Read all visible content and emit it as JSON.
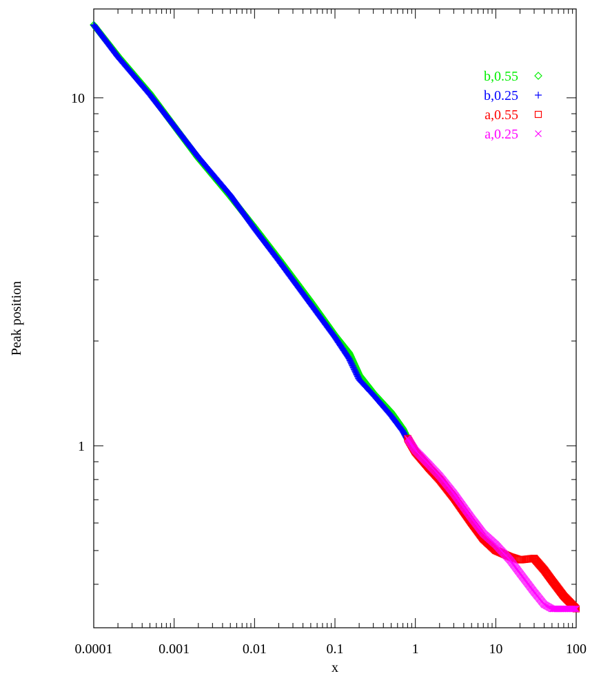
{
  "chart_data": {
    "type": "scatter",
    "title": "",
    "xlabel": "x",
    "ylabel": "Peak position",
    "xscale": "log",
    "yscale": "log",
    "xlim": [
      0.0001,
      100
    ],
    "ylim": [
      0.3,
      18
    ],
    "grid": false,
    "legend_position": "top-right",
    "x_ticks": [
      {
        "value": 0.0001,
        "label": "0.0001"
      },
      {
        "value": 0.001,
        "label": "0.001"
      },
      {
        "value": 0.01,
        "label": "0.01"
      },
      {
        "value": 0.1,
        "label": "0.1"
      },
      {
        "value": 1,
        "label": "1"
      },
      {
        "value": 10,
        "label": "10"
      },
      {
        "value": 100,
        "label": "100"
      }
    ],
    "y_ticks": [
      {
        "value": 1,
        "label": "1"
      },
      {
        "value": 10,
        "label": "10"
      }
    ],
    "series": [
      {
        "name": "b,0.55",
        "marker": "diamond",
        "color": "#00ee00",
        "points": [
          [
            0.0001,
            16.2
          ],
          [
            0.0002,
            13.2
          ],
          [
            0.0005,
            10.3
          ],
          [
            0.001,
            8.3
          ],
          [
            0.002,
            6.7
          ],
          [
            0.005,
            5.2
          ],
          [
            0.01,
            4.25
          ],
          [
            0.02,
            3.45
          ],
          [
            0.05,
            2.6
          ],
          [
            0.1,
            2.08
          ],
          [
            0.15,
            1.85
          ],
          [
            0.2,
            1.6
          ],
          [
            0.3,
            1.42
          ],
          [
            0.5,
            1.25
          ],
          [
            0.7,
            1.12
          ],
          [
            0.8,
            1.05
          ]
        ]
      },
      {
        "name": "b,0.25",
        "marker": "plus",
        "color": "#0000ff",
        "points": [
          [
            0.0001,
            16.2
          ],
          [
            0.0002,
            13.1
          ],
          [
            0.0005,
            10.2
          ],
          [
            0.001,
            8.3
          ],
          [
            0.002,
            6.75
          ],
          [
            0.005,
            5.25
          ],
          [
            0.01,
            4.2
          ],
          [
            0.02,
            3.4
          ],
          [
            0.05,
            2.55
          ],
          [
            0.1,
            2.05
          ],
          [
            0.15,
            1.78
          ],
          [
            0.2,
            1.55
          ],
          [
            0.3,
            1.4
          ],
          [
            0.5,
            1.22
          ],
          [
            0.7,
            1.1
          ],
          [
            0.8,
            1.04
          ]
        ]
      },
      {
        "name": "a,0.55",
        "marker": "square",
        "color": "#ff0000",
        "points": [
          [
            0.8,
            1.05
          ],
          [
            1,
            0.96
          ],
          [
            1.5,
            0.86
          ],
          [
            2,
            0.8
          ],
          [
            3,
            0.71
          ],
          [
            5,
            0.6
          ],
          [
            7,
            0.54
          ],
          [
            10,
            0.5
          ],
          [
            15,
            0.48
          ],
          [
            20,
            0.47
          ],
          [
            30,
            0.475
          ],
          [
            40,
            0.44
          ],
          [
            50,
            0.41
          ],
          [
            70,
            0.37
          ],
          [
            100,
            0.34
          ]
        ]
      },
      {
        "name": "a,0.25",
        "marker": "cross",
        "color": "#ff00ff",
        "points": [
          [
            0.8,
            1.05
          ],
          [
            1,
            0.97
          ],
          [
            1.5,
            0.88
          ],
          [
            2,
            0.82
          ],
          [
            3,
            0.73
          ],
          [
            5,
            0.62
          ],
          [
            7,
            0.56
          ],
          [
            10,
            0.52
          ],
          [
            15,
            0.47
          ],
          [
            20,
            0.43
          ],
          [
            30,
            0.38
          ],
          [
            40,
            0.35
          ],
          [
            50,
            0.34
          ],
          [
            70,
            0.34
          ],
          [
            100,
            0.34
          ]
        ]
      }
    ]
  }
}
